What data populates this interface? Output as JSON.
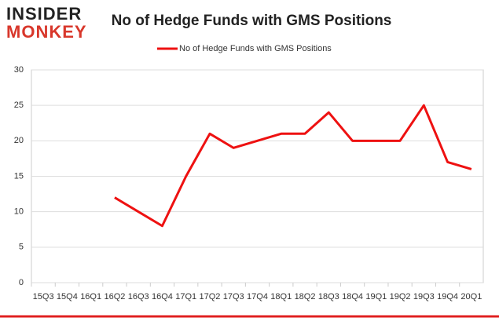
{
  "logo": {
    "top": "INSIDER",
    "bottom": "MONKEY"
  },
  "chart_data": {
    "type": "line",
    "title": "No of Hedge Funds with GMS Positions",
    "categories": [
      "15Q3",
      "15Q4",
      "16Q1",
      "16Q2",
      "16Q3",
      "16Q4",
      "17Q1",
      "17Q2",
      "17Q3",
      "17Q4",
      "18Q1",
      "18Q2",
      "18Q3",
      "18Q4",
      "19Q1",
      "19Q2",
      "19Q3",
      "19Q4",
      "20Q1"
    ],
    "series": [
      {
        "name": "No of Hedge Funds with GMS Positions",
        "color": "#ee1111",
        "values": [
          null,
          null,
          null,
          12,
          10,
          8,
          15,
          21,
          19,
          20,
          21,
          21,
          24,
          20,
          20,
          20,
          25,
          17,
          16
        ]
      }
    ],
    "ylim": [
      0,
      30
    ],
    "yticks": [
      0,
      5,
      10,
      15,
      20,
      25,
      30
    ],
    "grid": true,
    "legend": "top"
  }
}
